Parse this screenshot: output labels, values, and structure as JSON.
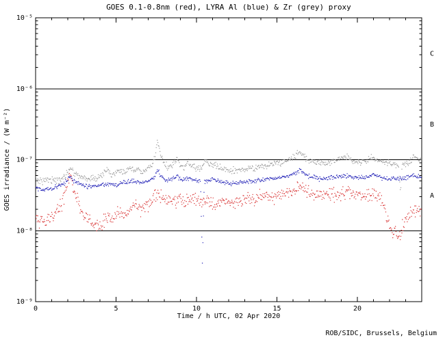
{
  "credit": "ROB/SIDC, Brussels, Belgium",
  "chart_data": {
    "type": "scatter",
    "title": "GOES 0.1-0.8nm (red), LYRA Al (blue) & Zr (grey) proxy",
    "xlabel": "Time / h UTC, 02 Apr 2020",
    "ylabel": "GOES irradiance / (W m⁻²)",
    "grid": false,
    "legend": "encoded in title colors",
    "xlim": [
      0,
      24
    ],
    "x_major_ticks": [
      0,
      5,
      10,
      15,
      20
    ],
    "x_major_tick_labels": [
      "0",
      "5",
      "10",
      "15",
      "20"
    ],
    "x_minor_step_h": 1,
    "ylog_top": -5,
    "ylog_bottom": -9,
    "ylim": [
      1e-09,
      1e-05
    ],
    "y_tick_exponents": [
      -5,
      -6,
      -7,
      -8,
      -9
    ],
    "y_tick_labels": [
      "10⁻⁵",
      "10⁻⁶",
      "10⁻⁷",
      "10⁻⁸",
      "10⁻⁹"
    ],
    "class_boundary_logs": [
      -6,
      -7,
      -8
    ],
    "class_labels": [
      {
        "label": "C",
        "log": -5.5
      },
      {
        "label": "B",
        "log": -6.5
      },
      {
        "label": "A",
        "log": -7.5
      }
    ],
    "series": [
      {
        "id": "lyra-zr",
        "name": "LYRA Zr proxy",
        "color": "#9a9a9a",
        "noise_dex": 0.022,
        "points_h_log10": [
          [
            0,
            -7.28
          ],
          [
            0.4,
            -7.3
          ],
          [
            0.8,
            -7.27
          ],
          [
            1.3,
            -7.3
          ],
          [
            1.7,
            -7.26
          ],
          [
            2.0,
            -7.18
          ],
          [
            2.15,
            -7.1
          ],
          [
            2.35,
            -7.17
          ],
          [
            2.7,
            -7.23
          ],
          [
            3.1,
            -7.26
          ],
          [
            3.6,
            -7.27
          ],
          [
            4.0,
            -7.25
          ],
          [
            4.45,
            -7.13
          ],
          [
            4.7,
            -7.21
          ],
          [
            5.0,
            -7.2
          ],
          [
            5.3,
            -7.14
          ],
          [
            5.6,
            -7.19
          ],
          [
            5.9,
            -7.12
          ],
          [
            6.1,
            -7.17
          ],
          [
            6.35,
            -7.13
          ],
          [
            6.6,
            -7.18
          ],
          [
            6.9,
            -7.14
          ],
          [
            7.2,
            -7.1
          ],
          [
            7.45,
            -6.95
          ],
          [
            7.58,
            -6.72
          ],
          [
            7.75,
            -6.9
          ],
          [
            7.95,
            -7.05
          ],
          [
            8.2,
            -7.1
          ],
          [
            8.5,
            -7.08
          ],
          [
            8.75,
            -6.97
          ],
          [
            9.0,
            -7.1
          ],
          [
            9.25,
            -7.12
          ],
          [
            9.45,
            -7.02
          ],
          [
            9.7,
            -7.1
          ],
          [
            10.0,
            -7.13
          ],
          [
            10.3,
            -7.1
          ],
          [
            10.55,
            -7.02
          ],
          [
            10.8,
            -7.08
          ],
          [
            11.1,
            -7.06
          ],
          [
            11.5,
            -7.12
          ],
          [
            12.0,
            -7.16
          ],
          [
            12.5,
            -7.15
          ],
          [
            13.0,
            -7.14
          ],
          [
            13.5,
            -7.12
          ],
          [
            14.0,
            -7.1
          ],
          [
            14.5,
            -7.08
          ],
          [
            15.0,
            -7.05
          ],
          [
            15.5,
            -7.02
          ],
          [
            16.0,
            -6.97
          ],
          [
            16.45,
            -6.88
          ],
          [
            16.7,
            -6.96
          ],
          [
            17.0,
            -7.01
          ],
          [
            17.5,
            -7.04
          ],
          [
            18.0,
            -7.05
          ],
          [
            18.5,
            -7.02
          ],
          [
            19.0,
            -6.99
          ],
          [
            19.35,
            -6.95
          ],
          [
            19.7,
            -7.0
          ],
          [
            20.0,
            -7.04
          ],
          [
            20.5,
            -7.01
          ],
          [
            21.0,
            -6.97
          ],
          [
            21.35,
            -7.02
          ],
          [
            21.7,
            -7.04
          ],
          [
            22.1,
            -7.06
          ],
          [
            22.55,
            -7.08
          ],
          [
            22.68,
            -7.45
          ],
          [
            22.8,
            -7.07
          ],
          [
            23.2,
            -7.04
          ],
          [
            23.55,
            -6.96
          ],
          [
            23.8,
            -7.01
          ],
          [
            24,
            -6.99
          ]
        ]
      },
      {
        "id": "lyra-al",
        "name": "LYRA Al proxy",
        "color": "#2525b8",
        "noise_dex": 0.015,
        "points_h_log10": [
          [
            0,
            -7.4
          ],
          [
            0.5,
            -7.42
          ],
          [
            1.0,
            -7.4
          ],
          [
            1.5,
            -7.37
          ],
          [
            1.95,
            -7.3
          ],
          [
            2.15,
            -7.24
          ],
          [
            2.45,
            -7.31
          ],
          [
            3.0,
            -7.36
          ],
          [
            3.5,
            -7.38
          ],
          [
            4.0,
            -7.37
          ],
          [
            4.5,
            -7.34
          ],
          [
            5.0,
            -7.35
          ],
          [
            5.5,
            -7.32
          ],
          [
            6.0,
            -7.3
          ],
          [
            6.5,
            -7.32
          ],
          [
            7.0,
            -7.3
          ],
          [
            7.35,
            -7.26
          ],
          [
            7.58,
            -7.13
          ],
          [
            7.75,
            -7.22
          ],
          [
            8.1,
            -7.29
          ],
          [
            8.5,
            -7.27
          ],
          [
            8.8,
            -7.23
          ],
          [
            9.1,
            -7.29
          ],
          [
            9.45,
            -7.25
          ],
          [
            9.8,
            -7.29
          ],
          [
            10.25,
            -7.3
          ],
          [
            10.33,
            -8.05
          ],
          [
            10.37,
            -8.5
          ],
          [
            10.42,
            -7.95
          ],
          [
            10.48,
            -7.31
          ],
          [
            10.8,
            -7.29
          ],
          [
            11.1,
            -7.27
          ],
          [
            11.5,
            -7.31
          ],
          [
            12.0,
            -7.33
          ],
          [
            12.5,
            -7.33
          ],
          [
            13.0,
            -7.32
          ],
          [
            13.5,
            -7.3
          ],
          [
            14.0,
            -7.29
          ],
          [
            14.5,
            -7.28
          ],
          [
            15.0,
            -7.26
          ],
          [
            15.5,
            -7.24
          ],
          [
            16.0,
            -7.21
          ],
          [
            16.45,
            -7.14
          ],
          [
            16.75,
            -7.2
          ],
          [
            17.1,
            -7.24
          ],
          [
            17.5,
            -7.26
          ],
          [
            18.0,
            -7.27
          ],
          [
            18.5,
            -7.25
          ],
          [
            19.0,
            -7.24
          ],
          [
            19.5,
            -7.23
          ],
          [
            20.0,
            -7.26
          ],
          [
            20.5,
            -7.25
          ],
          [
            21.0,
            -7.21
          ],
          [
            21.5,
            -7.25
          ],
          [
            22.0,
            -7.27
          ],
          [
            22.5,
            -7.27
          ],
          [
            23.0,
            -7.26
          ],
          [
            23.5,
            -7.23
          ],
          [
            24,
            -7.24
          ]
        ]
      },
      {
        "id": "goes",
        "name": "GOES 0.1-0.8nm",
        "color": "#d83030",
        "noise_dex": 0.045,
        "points_h_log10": [
          [
            0,
            -7.8
          ],
          [
            0.2,
            -7.93
          ],
          [
            0.4,
            -7.84
          ],
          [
            0.6,
            -7.9
          ],
          [
            0.8,
            -7.8
          ],
          [
            1.0,
            -7.84
          ],
          [
            1.2,
            -7.76
          ],
          [
            1.4,
            -7.7
          ],
          [
            1.6,
            -7.64
          ],
          [
            1.8,
            -7.52
          ],
          [
            2.0,
            -7.32
          ],
          [
            2.12,
            -7.18
          ],
          [
            2.25,
            -7.32
          ],
          [
            2.45,
            -7.5
          ],
          [
            2.65,
            -7.6
          ],
          [
            2.85,
            -7.7
          ],
          [
            3.1,
            -7.78
          ],
          [
            3.4,
            -7.84
          ],
          [
            3.7,
            -7.9
          ],
          [
            4.0,
            -7.92
          ],
          [
            4.3,
            -7.87
          ],
          [
            4.6,
            -7.82
          ],
          [
            5.0,
            -7.79
          ],
          [
            5.3,
            -7.74
          ],
          [
            5.6,
            -7.77
          ],
          [
            6.0,
            -7.67
          ],
          [
            6.2,
            -7.6
          ],
          [
            6.45,
            -7.69
          ],
          [
            6.7,
            -7.66
          ],
          [
            7.0,
            -7.62
          ],
          [
            7.3,
            -7.58
          ],
          [
            7.58,
            -7.45
          ],
          [
            7.8,
            -7.54
          ],
          [
            8.1,
            -7.58
          ],
          [
            8.4,
            -7.54
          ],
          [
            8.7,
            -7.58
          ],
          [
            9.0,
            -7.54
          ],
          [
            9.3,
            -7.58
          ],
          [
            9.6,
            -7.54
          ],
          [
            10.0,
            -7.59
          ],
          [
            10.4,
            -7.61
          ],
          [
            10.8,
            -7.59
          ],
          [
            11.2,
            -7.62
          ],
          [
            11.6,
            -7.59
          ],
          [
            12.0,
            -7.58
          ],
          [
            12.5,
            -7.59
          ],
          [
            13.0,
            -7.56
          ],
          [
            13.5,
            -7.55
          ],
          [
            14.0,
            -7.54
          ],
          [
            14.5,
            -7.52
          ],
          [
            15.0,
            -7.52
          ],
          [
            15.5,
            -7.49
          ],
          [
            16.0,
            -7.45
          ],
          [
            16.45,
            -7.35
          ],
          [
            16.7,
            -7.42
          ],
          [
            17.0,
            -7.47
          ],
          [
            17.3,
            -7.51
          ],
          [
            17.6,
            -7.47
          ],
          [
            18.0,
            -7.51
          ],
          [
            18.4,
            -7.47
          ],
          [
            18.8,
            -7.5
          ],
          [
            19.2,
            -7.45
          ],
          [
            19.6,
            -7.47
          ],
          [
            20.0,
            -7.5
          ],
          [
            20.4,
            -7.52
          ],
          [
            20.8,
            -7.48
          ],
          [
            21.2,
            -7.51
          ],
          [
            21.5,
            -7.58
          ],
          [
            21.8,
            -7.78
          ],
          [
            22.0,
            -7.93
          ],
          [
            22.2,
            -8.04
          ],
          [
            22.35,
            -7.98
          ],
          [
            22.5,
            -8.08
          ],
          [
            22.65,
            -8.12
          ],
          [
            22.8,
            -7.95
          ],
          [
            23.0,
            -7.86
          ],
          [
            23.2,
            -7.79
          ],
          [
            23.4,
            -7.7
          ],
          [
            23.6,
            -7.76
          ],
          [
            23.8,
            -7.7
          ],
          [
            24,
            -7.74
          ]
        ]
      }
    ]
  }
}
